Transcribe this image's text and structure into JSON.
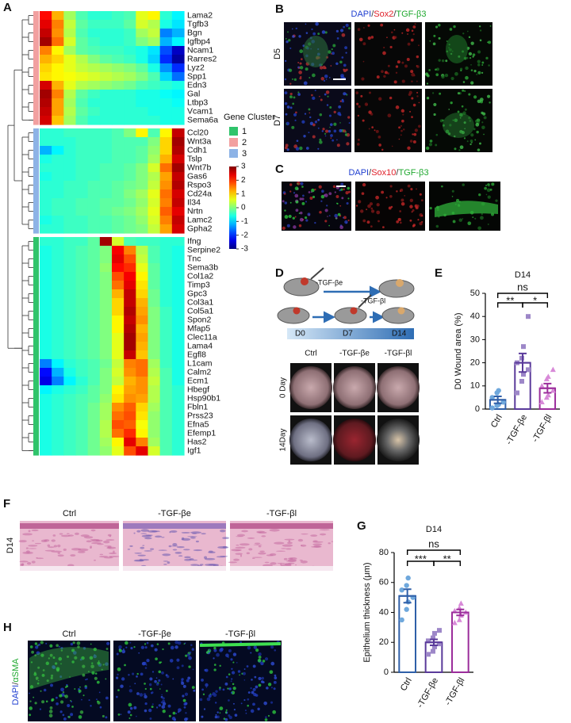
{
  "chart_data": [
    {
      "type": "heatmap",
      "legend_title": "Gene Cluster",
      "clusters": [
        {
          "name": "1",
          "color": "#2fc46b"
        },
        {
          "name": "2",
          "color": "#f2a0a0"
        },
        {
          "name": "3",
          "color": "#8db3e6"
        }
      ],
      "clim": [
        -3,
        3
      ],
      "colorbar_ticks": [
        3,
        2,
        1,
        0,
        -1,
        -2,
        -3
      ],
      "rows": [
        "Lama2",
        "Tgfb3",
        "Bgn",
        "Igfbp4",
        "Ncam1",
        "Rarres2",
        "Lyz2",
        "Spp1",
        "Edn3",
        "Gal",
        "Ltbp3",
        "Vcam1",
        "Sema6a",
        "Ccl20",
        "Wnt3a",
        "Cdh1",
        "Tslp",
        "Wnt7b",
        "Gas6",
        "Rspo3",
        "Cd24a",
        "Il34",
        "Nrtn",
        "Lamc2",
        "Gpha2",
        "Ifng",
        "Serpine2",
        "Tnc",
        "Sema3b",
        "Col1a2",
        "Timp3",
        "Gpc3",
        "Col3a1",
        "Col5a1",
        "Spon2",
        "Mfap5",
        "Clec11a",
        "Lama4",
        "Egfl8",
        "L1cam",
        "Calm2",
        "Ecm1",
        "Hbegf",
        "Hsp90b1",
        "Fbln1",
        "Prss23",
        "Efna5",
        "Efemp1",
        "Has2",
        "Igf1"
      ],
      "row_clusters": [
        2,
        2,
        2,
        2,
        2,
        2,
        2,
        2,
        2,
        2,
        2,
        2,
        2,
        3,
        3,
        3,
        3,
        3,
        3,
        3,
        3,
        3,
        3,
        3,
        3,
        1,
        1,
        1,
        1,
        1,
        1,
        1,
        1,
        1,
        1,
        1,
        1,
        1,
        1,
        1,
        1,
        1,
        1,
        1,
        1,
        1,
        1,
        1,
        1,
        1
      ],
      "values": [
        [
          2.2,
          1.2,
          0.2,
          -0.3,
          -0.5,
          -0.5,
          -0.4,
          -0.3,
          0.6,
          0.8,
          -0.5,
          -0.8
        ],
        [
          2.4,
          1.5,
          0.4,
          -0.2,
          -0.4,
          -0.4,
          -0.4,
          -0.2,
          0.5,
          0.3,
          -0.6,
          -0.9
        ],
        [
          2.6,
          1.4,
          0.3,
          -0.3,
          -0.5,
          -0.5,
          -0.5,
          -0.4,
          0.2,
          0.4,
          -1.5,
          -1.2
        ],
        [
          2.8,
          1.6,
          0.5,
          -0.2,
          -0.4,
          -0.5,
          -0.5,
          -0.4,
          0,
          0.2,
          -1.2,
          -0.8
        ],
        [
          1.5,
          0.8,
          0.2,
          -0.2,
          -0.3,
          -0.4,
          -0.4,
          -0.5,
          -0.6,
          -0.9,
          -1.8,
          -2.6
        ],
        [
          1.2,
          1,
          0.6,
          0.3,
          0,
          -0.2,
          -0.3,
          -0.4,
          -0.6,
          -1,
          -2,
          -2.8
        ],
        [
          1,
          0.8,
          0.6,
          0.4,
          0.3,
          0.2,
          0.1,
          0,
          -0.2,
          -0.6,
          -1.4,
          -2
        ],
        [
          0.9,
          0.8,
          0.7,
          0.6,
          0.5,
          0.4,
          0.3,
          0.2,
          0,
          -0.3,
          -1,
          -1.6
        ],
        [
          2.5,
          1.2,
          0.6,
          0.3,
          0.2,
          0.1,
          0,
          -0.1,
          -0.3,
          -0.4,
          -0.5,
          -0.6
        ],
        [
          2.8,
          1.5,
          0.3,
          -0.2,
          -0.4,
          -0.5,
          -0.5,
          -0.5,
          -0.6,
          -0.6,
          -0.7,
          -0.8
        ],
        [
          2.7,
          1.3,
          0.2,
          -0.3,
          -0.5,
          -0.5,
          -0.5,
          -0.5,
          -0.6,
          -0.6,
          -0.6,
          -0.7
        ],
        [
          2.6,
          1.3,
          0.3,
          -0.2,
          -0.4,
          -0.5,
          -0.5,
          -0.5,
          -0.5,
          -0.6,
          -0.6,
          -0.6
        ],
        [
          2.5,
          1.1,
          0.2,
          -0.3,
          -0.5,
          -0.5,
          -0.5,
          -0.5,
          -0.5,
          -0.5,
          -0.6,
          -0.6
        ],
        [
          -0.5,
          -0.5,
          -0.4,
          -0.4,
          -0.4,
          -0.4,
          -0.3,
          0,
          0.8,
          -0.3,
          0.8,
          2.6
        ],
        [
          -0.5,
          -0.5,
          -0.5,
          -0.4,
          -0.4,
          -0.4,
          -0.3,
          -0.3,
          -0.3,
          0,
          1,
          2.8
        ],
        [
          -1.2,
          -0.8,
          -0.5,
          -0.4,
          -0.4,
          -0.4,
          -0.3,
          -0.3,
          -0.2,
          0.1,
          1,
          2.7
        ],
        [
          -0.6,
          -0.5,
          -0.5,
          -0.4,
          -0.4,
          -0.4,
          -0.3,
          -0.3,
          -0.2,
          0.2,
          1.2,
          2.5
        ],
        [
          -0.5,
          -0.5,
          -0.5,
          -0.4,
          -0.4,
          -0.3,
          -0.3,
          -0.2,
          0,
          0.5,
          1.6,
          2.8
        ],
        [
          -0.6,
          -0.5,
          -0.5,
          -0.4,
          -0.4,
          -0.3,
          -0.3,
          -0.2,
          0,
          0.3,
          1.3,
          2.6
        ],
        [
          -0.5,
          -0.5,
          -0.4,
          -0.4,
          -0.3,
          -0.3,
          -0.2,
          -0.1,
          0,
          0.4,
          1.4,
          2.7
        ],
        [
          -0.5,
          -0.5,
          -0.4,
          -0.4,
          -0.3,
          -0.3,
          -0.2,
          0,
          0.2,
          0.6,
          1.6,
          2.5
        ],
        [
          -0.5,
          -0.4,
          -0.4,
          -0.3,
          -0.3,
          -0.2,
          -0.2,
          -0.1,
          0.1,
          0.5,
          1.5,
          2.6
        ],
        [
          -0.5,
          -0.4,
          -0.4,
          -0.3,
          -0.3,
          -0.2,
          -0.1,
          0,
          0.2,
          0.6,
          1.7,
          2.4
        ],
        [
          -0.6,
          -0.5,
          -0.4,
          -0.4,
          -0.3,
          -0.3,
          -0.2,
          -0.1,
          0.1,
          0.5,
          1.5,
          2.6
        ],
        [
          -0.5,
          -0.5,
          -0.4,
          -0.4,
          -0.3,
          -0.3,
          -0.2,
          -0.1,
          0,
          0.4,
          1.3,
          2.5
        ],
        [
          -0.5,
          -0.5,
          -0.4,
          -0.4,
          -0.2,
          2.8,
          0.5,
          -0.3,
          -0.4,
          -0.4,
          -0.5,
          -0.5
        ],
        [
          -0.6,
          -0.5,
          -0.4,
          -0.3,
          -0.2,
          0,
          2.3,
          1.5,
          0.3,
          -0.3,
          -0.5,
          -0.6
        ],
        [
          -0.6,
          -0.5,
          -0.4,
          -0.3,
          -0.2,
          0,
          2.4,
          1.8,
          0.4,
          -0.3,
          -0.5,
          -0.6
        ],
        [
          -0.6,
          -0.5,
          -0.4,
          -0.3,
          -0.2,
          0.1,
          2.2,
          2,
          0.6,
          -0.2,
          -0.5,
          -0.6
        ],
        [
          -0.6,
          -0.5,
          -0.4,
          -0.3,
          -0.2,
          0,
          1.8,
          2.3,
          0.8,
          -0.2,
          -0.5,
          -0.6
        ],
        [
          -0.6,
          -0.5,
          -0.4,
          -0.3,
          -0.2,
          0,
          1.6,
          2.4,
          0.9,
          -0.2,
          -0.5,
          -0.6
        ],
        [
          -0.6,
          -0.5,
          -0.4,
          -0.3,
          -0.2,
          0,
          1.2,
          2.6,
          1,
          -0.1,
          -0.5,
          -0.6
        ],
        [
          -0.6,
          -0.5,
          -0.4,
          -0.3,
          -0.2,
          0,
          1,
          2.6,
          1.2,
          -0.1,
          -0.5,
          -0.6
        ],
        [
          -0.6,
          -0.5,
          -0.4,
          -0.3,
          -0.2,
          0,
          1,
          2.7,
          1.3,
          0,
          -0.4,
          -0.6
        ],
        [
          -0.6,
          -0.5,
          -0.4,
          -0.3,
          -0.2,
          0,
          0.8,
          2.6,
          1.4,
          0,
          -0.4,
          -0.6
        ],
        [
          -0.6,
          -0.5,
          -0.4,
          -0.3,
          -0.2,
          0,
          0.8,
          2.7,
          1.2,
          0,
          -0.4,
          -0.6
        ],
        [
          -0.6,
          -0.5,
          -0.4,
          -0.3,
          -0.2,
          0,
          0.6,
          2.8,
          1.3,
          0,
          -0.4,
          -0.6
        ],
        [
          -0.6,
          -0.5,
          -0.4,
          -0.3,
          -0.2,
          0,
          0.6,
          2.8,
          1.2,
          0,
          -0.4,
          -0.6
        ],
        [
          -0.6,
          -0.5,
          -0.4,
          -0.3,
          -0.2,
          0,
          0.6,
          2.6,
          1.1,
          0,
          -0.4,
          -0.6
        ],
        [
          -1.5,
          -0.8,
          -0.5,
          -0.4,
          -0.3,
          -0.1,
          0.4,
          1.5,
          1.6,
          0.2,
          -0.4,
          -0.6
        ],
        [
          -2.2,
          -1.2,
          -0.6,
          -0.4,
          -0.3,
          0,
          0.5,
          1.4,
          1.6,
          0.3,
          -0.3,
          -0.6
        ],
        [
          -2.4,
          -1.5,
          -0.8,
          -0.5,
          -0.3,
          0,
          0.4,
          1.2,
          1.4,
          0.4,
          -0.3,
          -0.6
        ],
        [
          -0.8,
          -0.6,
          -0.5,
          -0.4,
          -0.2,
          0,
          0.8,
          1.3,
          1.4,
          0.3,
          -0.3,
          -0.5
        ],
        [
          -0.6,
          -0.5,
          -0.4,
          -0.3,
          -0.2,
          0.1,
          0.9,
          1.4,
          1.3,
          0.3,
          -0.3,
          -0.5
        ],
        [
          -0.6,
          -0.5,
          -0.4,
          -0.3,
          -0.1,
          0.2,
          1.4,
          1.7,
          1,
          0.2,
          -0.3,
          -0.5
        ],
        [
          -0.6,
          -0.5,
          -0.4,
          -0.3,
          -0.1,
          0.2,
          1.6,
          1.8,
          0.9,
          0.1,
          -0.3,
          -0.5
        ],
        [
          -0.6,
          -0.5,
          -0.4,
          -0.3,
          -0.1,
          0.3,
          1.8,
          1.7,
          0.7,
          0.1,
          -0.3,
          -0.5
        ],
        [
          -0.6,
          -0.5,
          -0.4,
          -0.3,
          -0.1,
          0.3,
          1.6,
          2,
          0.8,
          0.1,
          -0.3,
          -0.5
        ],
        [
          -0.6,
          -0.5,
          -0.4,
          -0.3,
          -0.1,
          0.2,
          0.8,
          2.4,
          1.5,
          0.2,
          -0.3,
          -0.5
        ],
        [
          -0.6,
          -0.5,
          -0.4,
          -0.3,
          -0.1,
          0.1,
          0.6,
          1.8,
          2.4,
          0.5,
          -0.3,
          -0.5
        ]
      ]
    },
    {
      "type": "bar",
      "title": "D14",
      "y_label": "D0 Wound area (%)",
      "categories": [
        "Ctrl",
        "-TGF-βe",
        "-TGF-βl"
      ],
      "values": [
        4,
        20,
        9
      ],
      "errors": [
        1.5,
        4,
        2
      ],
      "colors": [
        "#2f5fa8",
        "#5a3a9a",
        "#9b2d9b"
      ],
      "point_colors": [
        "#6fa8dc",
        "#9d87c8",
        "#d88ad8"
      ],
      "markers": [
        "circle",
        "square",
        "triangle"
      ],
      "points": [
        [
          0.5,
          1.5,
          2,
          3,
          5,
          7,
          8
        ],
        [
          7,
          12,
          15,
          17,
          20,
          22,
          27,
          40
        ],
        [
          3,
          5,
          6,
          8,
          10,
          13,
          14,
          17
        ]
      ],
      "ylim": [
        0,
        50
      ],
      "yticks": [
        0,
        10,
        20,
        30,
        40,
        50
      ],
      "comparisons": [
        {
          "groups": [
            0,
            2
          ],
          "label": "ns"
        },
        {
          "groups": [
            0,
            1
          ],
          "label": "**"
        },
        {
          "groups": [
            1,
            2
          ],
          "label": "*"
        }
      ]
    },
    {
      "type": "bar",
      "title": "D14",
      "y_label": "Epithelium thickness (μm)",
      "categories": [
        "Ctrl",
        "-TGF-βe",
        "-TGF-βl"
      ],
      "values": [
        51,
        20,
        40
      ],
      "errors": [
        4.5,
        2,
        2
      ],
      "colors": [
        "#2f5fa8",
        "#5a3a9a",
        "#9b2d9b"
      ],
      "point_colors": [
        "#6fa8dc",
        "#9d87c8",
        "#d88ad8"
      ],
      "markers": [
        "circle",
        "square",
        "triangle"
      ],
      "points": [
        [
          35,
          42,
          47,
          50,
          55,
          58,
          63
        ],
        [
          12,
          14,
          17,
          19,
          21,
          23,
          26,
          28
        ],
        [
          33,
          35,
          38,
          40,
          41,
          43,
          46
        ]
      ],
      "ylim": [
        0,
        80
      ],
      "yticks": [
        0,
        20,
        40,
        60,
        80
      ],
      "comparisons": [
        {
          "groups": [
            0,
            2
          ],
          "label": "ns"
        },
        {
          "groups": [
            0,
            1
          ],
          "label": "***"
        },
        {
          "groups": [
            1,
            2
          ],
          "label": "**"
        }
      ]
    }
  ],
  "figure": {
    "panel_letters": [
      "A",
      "B",
      "C",
      "D",
      "E",
      "F",
      "G",
      "H"
    ],
    "b": {
      "stain": [
        {
          "text": "DAPI",
          "color": "#1f3fd0"
        },
        {
          "text": "/",
          "color": "#333333"
        },
        {
          "text": "Sox2",
          "color": "#e0202a"
        },
        {
          "text": "/",
          "color": "#333333"
        },
        {
          "text": "TGF-β3",
          "color": "#1fa82f"
        }
      ],
      "rows": [
        "D5",
        "D7"
      ]
    },
    "c": {
      "stain": [
        {
          "text": "DAPI",
          "color": "#1f3fd0"
        },
        {
          "text": "/",
          "color": "#333333"
        },
        {
          "text": "Sox10",
          "color": "#e0202a"
        },
        {
          "text": "/",
          "color": "#333333"
        },
        {
          "text": "TGF-β3",
          "color": "#1fa82f"
        }
      ]
    },
    "d": {
      "treatments": [
        "-TGF-βe",
        "-TGF-βl"
      ],
      "days": [
        "D0",
        "D7",
        "D14"
      ],
      "columns": [
        "Ctrl",
        "-TGF-βe",
        "-TGF-βl"
      ],
      "rows": [
        "0 Day",
        "14Day"
      ]
    },
    "f": {
      "columns": [
        "Ctrl",
        "-TGF-βe",
        "-TGF-βl"
      ],
      "row": "D14"
    },
    "h": {
      "columns": [
        "Ctrl",
        "-TGF-βe",
        "-TGF-βl"
      ],
      "stain": [
        {
          "text": "DAPI",
          "color": "#1f3fd0"
        },
        {
          "text": "/",
          "color": "#333333"
        },
        {
          "text": "αSMA",
          "color": "#1fa82f"
        }
      ]
    }
  }
}
